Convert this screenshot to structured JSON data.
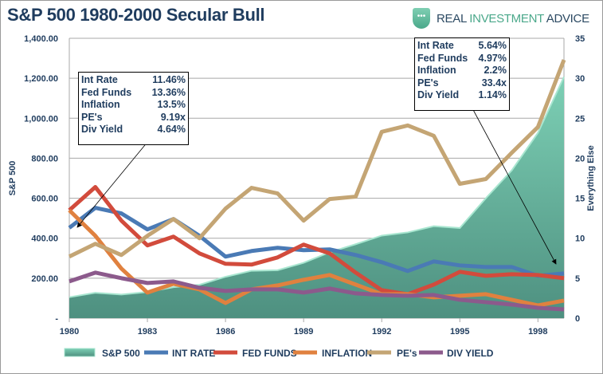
{
  "title": "S&P 500 1980-2000 Secular Bull",
  "logo": {
    "text_a": "REAL ",
    "text_b": "INVESTMENT",
    "text_c": " ADVICE"
  },
  "annotations": [
    {
      "rows": [
        [
          "Int Rate",
          "11.46%"
        ],
        [
          "Fed Funds",
          "13.36%"
        ],
        [
          "Inflation",
          "13.5%"
        ],
        [
          "PE's",
          "9.19x"
        ],
        [
          "Div Yield",
          "4.64%"
        ]
      ]
    },
    {
      "rows": [
        [
          "Int Rate",
          "5.64%"
        ],
        [
          "Fed Funds",
          "4.97%"
        ],
        [
          "Inflation",
          "2.2%"
        ],
        [
          "PE's",
          "33.4x"
        ],
        [
          "Div Yield",
          "1.14%"
        ]
      ]
    }
  ],
  "chart_data": {
    "type": "line",
    "title": "S&P 500 1980-2000 Secular Bull",
    "x": [
      1980,
      1981,
      1982,
      1983,
      1984,
      1985,
      1986,
      1987,
      1988,
      1989,
      1990,
      1991,
      1992,
      1993,
      1994,
      1995,
      1996,
      1997,
      1998,
      1999
    ],
    "x_ticks": [
      "1980",
      "1983",
      "1986",
      "1989",
      "1992",
      "1995",
      "1998"
    ],
    "ylabel_left": "S&P 500",
    "ylabel_right": "Everything Else",
    "ylim_left": [
      0,
      1400
    ],
    "yticks_left": [
      "-",
      "200.00",
      "400.00",
      "600.00",
      "800.00",
      "1,000.00",
      "1,200.00",
      "1,400.00"
    ],
    "ylim_right": [
      0,
      35
    ],
    "yticks_right": [
      "0",
      "5",
      "10",
      "15",
      "20",
      "25",
      "30",
      "35"
    ],
    "grid": true,
    "legend_position": "bottom",
    "series": [
      {
        "name": "S&P 500",
        "type": "area",
        "axis": "left",
        "color": "#5fa592",
        "values": [
          105,
          127,
          118,
          131,
          155,
          167,
          207,
          237,
          240,
          277,
          330,
          370,
          413,
          429,
          460,
          451,
          600,
          740,
          927,
          1207
        ]
      },
      {
        "name": "INT RATE",
        "axis": "right",
        "color": "#4a7ab5",
        "values": [
          11.3,
          13.8,
          13.1,
          11.1,
          12.4,
          10.3,
          7.7,
          8.4,
          8.8,
          8.5,
          8.6,
          7.9,
          7.0,
          5.9,
          7.1,
          6.6,
          6.4,
          6.4,
          5.3,
          5.6
        ]
      },
      {
        "name": "FED FUNDS",
        "axis": "right",
        "color": "#d24b3c",
        "values": [
          13.5,
          16.4,
          12.2,
          9.1,
          10.2,
          8.1,
          6.8,
          6.7,
          7.6,
          9.2,
          8.1,
          5.7,
          3.5,
          3.0,
          4.2,
          5.8,
          5.3,
          5.5,
          5.4,
          5.0
        ]
      },
      {
        "name": "INFLATION",
        "axis": "right",
        "color": "#e0813f",
        "values": [
          13.5,
          10.3,
          6.2,
          3.2,
          4.3,
          3.6,
          1.9,
          3.6,
          4.1,
          4.8,
          5.4,
          4.2,
          3.0,
          3.0,
          2.6,
          2.8,
          3.0,
          2.3,
          1.6,
          2.2
        ]
      },
      {
        "name": "PE's",
        "axis": "right",
        "color": "#c4a574",
        "values": [
          7.7,
          9.3,
          7.9,
          10.3,
          12.4,
          10.0,
          13.7,
          16.3,
          15.6,
          12.2,
          14.9,
          15.2,
          23.3,
          24.1,
          22.8,
          16.8,
          17.4,
          20.7,
          23.9,
          32.3
        ]
      },
      {
        "name": "DIV YIELD",
        "axis": "right",
        "color": "#8c5a8c",
        "values": [
          4.6,
          5.7,
          5.0,
          4.4,
          4.6,
          3.8,
          3.4,
          3.6,
          3.6,
          3.2,
          3.7,
          3.1,
          2.9,
          2.8,
          2.9,
          2.3,
          2.0,
          1.7,
          1.3,
          1.1
        ]
      }
    ]
  }
}
